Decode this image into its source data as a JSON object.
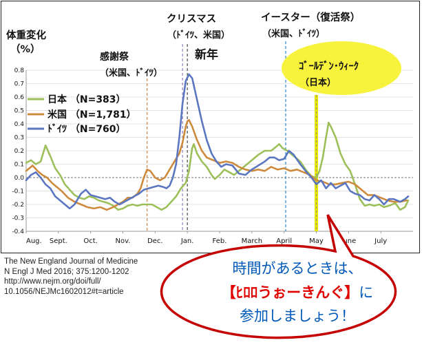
{
  "chart_data": {
    "type": "line",
    "ylabel": [
      "体重変化",
      "（%）"
    ],
    "ylim": [
      -0.4,
      0.8
    ],
    "yticks": [
      "0.8",
      "0.7",
      "0.6",
      "0.5",
      "0.4",
      "0.3",
      "0.2",
      "0.1",
      "0.0",
      "-0.1",
      "-0.2",
      "-0.3",
      "-0.4"
    ],
    "xticks": [
      "Aug.",
      "Sept.",
      "Oct.",
      "Nov.",
      "Dec.",
      "Jan.",
      "Feb.",
      "March",
      "April",
      "May",
      "June",
      "July"
    ],
    "grid": true,
    "legend": "top-left",
    "series": [
      {
        "name": "日本 （N=383）",
        "color": "#9dbf5a",
        "points": [
          [
            0,
            0.11
          ],
          [
            0.15,
            0.13
          ],
          [
            0.3,
            0.1
          ],
          [
            0.45,
            0.12
          ],
          [
            0.6,
            0.24
          ],
          [
            0.75,
            0.16
          ],
          [
            0.9,
            0.07
          ],
          [
            1.05,
            0.02
          ],
          [
            1.2,
            -0.05
          ],
          [
            1.35,
            -0.09
          ],
          [
            1.5,
            -0.13
          ],
          [
            1.65,
            -0.15
          ],
          [
            1.8,
            -0.16
          ],
          [
            1.95,
            -0.14
          ],
          [
            2.1,
            -0.15
          ],
          [
            2.25,
            -0.17
          ],
          [
            2.4,
            -0.18
          ],
          [
            2.55,
            -0.19
          ],
          [
            2.7,
            -0.21
          ],
          [
            2.85,
            -0.24
          ],
          [
            3.0,
            -0.23
          ],
          [
            3.15,
            -0.21
          ],
          [
            3.3,
            -0.2
          ],
          [
            3.45,
            -0.21
          ],
          [
            3.6,
            -0.2
          ],
          [
            3.75,
            -0.2
          ],
          [
            3.9,
            -0.2
          ],
          [
            4.05,
            -0.22
          ],
          [
            4.2,
            -0.24
          ],
          [
            4.35,
            -0.22
          ],
          [
            4.5,
            -0.18
          ],
          [
            4.65,
            -0.14
          ],
          [
            4.8,
            -0.08
          ],
          [
            4.95,
            -0.04
          ],
          [
            5.05,
            0.05
          ],
          [
            5.15,
            0.22
          ],
          [
            5.2,
            0.25
          ],
          [
            5.3,
            0.18
          ],
          [
            5.45,
            0.12
          ],
          [
            5.6,
            0.08
          ],
          [
            5.75,
            0.02
          ],
          [
            5.85,
            -0.01
          ],
          [
            6.0,
            0.02
          ],
          [
            6.15,
            0.06
          ],
          [
            6.3,
            0.04
          ],
          [
            6.45,
            0.02
          ],
          [
            6.6,
            0.05
          ],
          [
            6.8,
            0.09
          ],
          [
            7.0,
            0.13
          ],
          [
            7.2,
            0.17
          ],
          [
            7.4,
            0.2
          ],
          [
            7.6,
            0.2
          ],
          [
            7.75,
            0.23
          ],
          [
            7.85,
            0.25
          ],
          [
            7.95,
            0.22
          ],
          [
            8.1,
            0.2
          ],
          [
            8.3,
            0.16
          ],
          [
            8.5,
            0.12
          ],
          [
            8.7,
            0.05
          ],
          [
            8.85,
            0.01
          ],
          [
            9.0,
            0.0
          ],
          [
            9.1,
            0.05
          ],
          [
            9.2,
            0.15
          ],
          [
            9.3,
            0.3
          ],
          [
            9.38,
            0.41
          ],
          [
            9.45,
            0.38
          ],
          [
            9.6,
            0.3
          ],
          [
            9.75,
            0.18
          ],
          [
            9.9,
            0.1
          ],
          [
            10.05,
            0.05
          ],
          [
            10.2,
            -0.05
          ],
          [
            10.35,
            -0.16
          ],
          [
            10.5,
            -0.21
          ],
          [
            10.65,
            -0.2
          ],
          [
            10.8,
            -0.21
          ],
          [
            10.95,
            -0.2
          ],
          [
            11.1,
            -0.22
          ],
          [
            11.25,
            -0.21
          ],
          [
            11.45,
            -0.19
          ],
          [
            11.6,
            -0.24
          ],
          [
            11.75,
            -0.22
          ],
          [
            11.85,
            -0.17
          ]
        ]
      },
      {
        "name": "米国 （N=1,781）",
        "color": "#cd8a3c",
        "points": [
          [
            0,
            0.05
          ],
          [
            0.2,
            0.09
          ],
          [
            0.35,
            0.05
          ],
          [
            0.5,
            0.02
          ],
          [
            0.65,
            0.0
          ],
          [
            0.8,
            -0.04
          ],
          [
            0.95,
            -0.07
          ],
          [
            1.1,
            -0.1
          ],
          [
            1.3,
            -0.15
          ],
          [
            1.5,
            -0.18
          ],
          [
            1.7,
            -0.2
          ],
          [
            1.9,
            -0.22
          ],
          [
            2.1,
            -0.23
          ],
          [
            2.3,
            -0.22
          ],
          [
            2.5,
            -0.24
          ],
          [
            2.7,
            -0.22
          ],
          [
            2.85,
            -0.2
          ],
          [
            3.0,
            -0.18
          ],
          [
            3.15,
            -0.15
          ],
          [
            3.3,
            -0.15
          ],
          [
            3.45,
            -0.12
          ],
          [
            3.55,
            -0.08
          ],
          [
            3.65,
            0.0
          ],
          [
            3.75,
            0.06
          ],
          [
            3.85,
            0.05
          ],
          [
            4.0,
            0.0
          ],
          [
            4.15,
            -0.02
          ],
          [
            4.3,
            0.0
          ],
          [
            4.45,
            0.06
          ],
          [
            4.6,
            0.12
          ],
          [
            4.75,
            0.18
          ],
          [
            4.85,
            0.26
          ],
          [
            4.95,
            0.38
          ],
          [
            5.0,
            0.42
          ],
          [
            5.05,
            0.43
          ],
          [
            5.15,
            0.38
          ],
          [
            5.3,
            0.28
          ],
          [
            5.45,
            0.2
          ],
          [
            5.6,
            0.15
          ],
          [
            5.8,
            0.13
          ],
          [
            6.0,
            0.11
          ],
          [
            6.2,
            0.12
          ],
          [
            6.4,
            0.11
          ],
          [
            6.6,
            0.08
          ],
          [
            6.8,
            0.06
          ],
          [
            7.0,
            0.05
          ],
          [
            7.2,
            0.06
          ],
          [
            7.4,
            0.05
          ],
          [
            7.6,
            0.08
          ],
          [
            7.8,
            0.06
          ],
          [
            8.0,
            0.07
          ],
          [
            8.2,
            0.05
          ],
          [
            8.4,
            0.06
          ],
          [
            8.6,
            0.04
          ],
          [
            8.8,
            0.02
          ],
          [
            9.0,
            -0.02
          ],
          [
            9.2,
            -0.03
          ],
          [
            9.4,
            -0.05
          ],
          [
            9.6,
            -0.05
          ],
          [
            9.8,
            -0.04
          ],
          [
            10.0,
            -0.03
          ],
          [
            10.2,
            -0.05
          ],
          [
            10.4,
            -0.09
          ],
          [
            10.6,
            -0.13
          ],
          [
            10.8,
            -0.13
          ],
          [
            11.0,
            -0.15
          ],
          [
            11.2,
            -0.17
          ],
          [
            11.4,
            -0.18
          ],
          [
            11.6,
            -0.18
          ],
          [
            11.8,
            -0.17
          ]
        ]
      },
      {
        "name": "ﾄﾞｲﾂ （N=760）",
        "color": "#5b76c0",
        "points": [
          [
            0,
            -0.02
          ],
          [
            0.15,
            0.02
          ],
          [
            0.3,
            0.04
          ],
          [
            0.45,
            0.0
          ],
          [
            0.6,
            -0.05
          ],
          [
            0.75,
            -0.08
          ],
          [
            0.9,
            -0.14
          ],
          [
            1.05,
            -0.17
          ],
          [
            1.2,
            -0.2
          ],
          [
            1.35,
            -0.23
          ],
          [
            1.5,
            -0.2
          ],
          [
            1.6,
            -0.16
          ],
          [
            1.7,
            -0.12
          ],
          [
            1.85,
            -0.09
          ],
          [
            2.0,
            -0.13
          ],
          [
            2.15,
            -0.14
          ],
          [
            2.3,
            -0.15
          ],
          [
            2.45,
            -0.16
          ],
          [
            2.6,
            -0.15
          ],
          [
            2.75,
            -0.18
          ],
          [
            2.9,
            -0.2
          ],
          [
            3.05,
            -0.18
          ],
          [
            3.2,
            -0.16
          ],
          [
            3.35,
            -0.14
          ],
          [
            3.5,
            -0.12
          ],
          [
            3.65,
            -0.09
          ],
          [
            3.8,
            -0.08
          ],
          [
            3.95,
            -0.07
          ],
          [
            4.1,
            -0.06
          ],
          [
            4.25,
            -0.07
          ],
          [
            4.35,
            -0.08
          ],
          [
            4.45,
            -0.06
          ],
          [
            4.55,
            0.0
          ],
          [
            4.65,
            0.1
          ],
          [
            4.75,
            0.3
          ],
          [
            4.85,
            0.55
          ],
          [
            4.95,
            0.72
          ],
          [
            5.05,
            0.77
          ],
          [
            5.15,
            0.74
          ],
          [
            5.3,
            0.58
          ],
          [
            5.45,
            0.42
          ],
          [
            5.6,
            0.28
          ],
          [
            5.75,
            0.18
          ],
          [
            5.9,
            0.12
          ],
          [
            6.05,
            0.08
          ],
          [
            6.2,
            0.1
          ],
          [
            6.4,
            0.09
          ],
          [
            6.6,
            0.03
          ],
          [
            6.8,
            0.02
          ],
          [
            7.0,
            0.06
          ],
          [
            7.2,
            0.09
          ],
          [
            7.4,
            0.12
          ],
          [
            7.55,
            0.15
          ],
          [
            7.7,
            0.15
          ],
          [
            7.85,
            0.13
          ],
          [
            8.0,
            0.14
          ],
          [
            8.15,
            0.2
          ],
          [
            8.3,
            0.17
          ],
          [
            8.5,
            0.1
          ],
          [
            8.7,
            0.04
          ],
          [
            8.85,
            0.0
          ],
          [
            9.0,
            -0.05
          ],
          [
            9.15,
            -0.02
          ],
          [
            9.3,
            -0.08
          ],
          [
            9.45,
            -0.04
          ],
          [
            9.6,
            -0.08
          ],
          [
            9.75,
            -0.06
          ],
          [
            9.9,
            -0.04
          ],
          [
            10.05,
            -0.1
          ],
          [
            10.2,
            -0.12
          ],
          [
            10.35,
            -0.13
          ],
          [
            10.5,
            -0.16
          ],
          [
            10.65,
            -0.17
          ],
          [
            10.8,
            -0.13
          ],
          [
            10.95,
            -0.16
          ],
          [
            11.1,
            -0.2
          ],
          [
            11.25,
            -0.16
          ],
          [
            11.4,
            -0.16
          ],
          [
            11.6,
            -0.18
          ],
          [
            11.75,
            -0.16
          ],
          [
            11.85,
            -0.14
          ]
        ]
      }
    ],
    "events": [
      {
        "x": 3.75,
        "label": "感謝祭",
        "sub": "（米国、ﾄﾞｲﾂ）",
        "color": "#d8894a"
      },
      {
        "x": 4.85,
        "label": "クリスマス",
        "sub": "（ﾄﾞｲﾂ、米国）",
        "color": "#9a86c0"
      },
      {
        "x": 5.0,
        "label": "新年",
        "sub": "",
        "color": "#555555"
      },
      {
        "x": 8.05,
        "label": "イースター（復活祭）",
        "sub": "（米国、ﾄﾞｲﾂ）",
        "color": "#3a8ccc"
      },
      {
        "x": 9.0,
        "label": "ｺﾞｰﾙﾃﾞﾝ･ｳｨｰｸ",
        "sub": "（日本）",
        "color": "#e6e600"
      }
    ]
  },
  "citation": [
    "The New England Journal of Medicine",
    "N Engl J Med 2016; 375:1200-1202",
    " http://www.nejm.org/doi/full/",
    "10.1056/NEJMc1602012#t=article"
  ],
  "callout": {
    "line1": "時間があるときは、",
    "highlight": "【ﾋﾛﾛうぉーきんぐ】",
    "line2_rest": "に",
    "line3": "参加しましょう！"
  }
}
